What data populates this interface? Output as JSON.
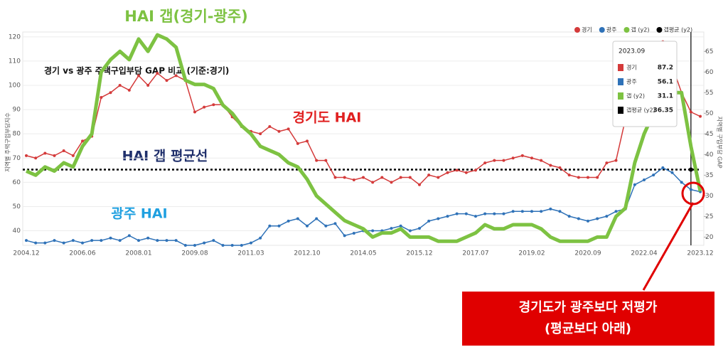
{
  "chart_data": {
    "type": "line",
    "title": "HAI 갭(경기-광주)",
    "subtitle": "경기 vs 광주  주택구입부담 GAP 비교 (기준:경기)",
    "y_label": "지역별 주택구입부담지수",
    "y2_label": "지역별 구입부담 GAP",
    "categories": [
      "2004.12",
      null,
      null,
      null,
      null,
      null,
      "2006.06",
      null,
      null,
      null,
      null,
      null,
      "2008.01",
      null,
      null,
      null,
      null,
      null,
      "2009.08",
      null,
      null,
      null,
      null,
      null,
      "2011.03",
      null,
      null,
      null,
      null,
      null,
      "2012.10",
      null,
      null,
      null,
      null,
      null,
      "2014.05",
      null,
      null,
      null,
      null,
      null,
      "2015.12",
      null,
      null,
      null,
      null,
      null,
      "2017.07",
      null,
      null,
      null,
      null,
      null,
      "2019.02",
      null,
      null,
      null,
      null,
      null,
      "2020.09",
      null,
      null,
      null,
      null,
      null,
      "2022.04",
      null,
      null,
      null,
      null,
      null,
      "2023.12"
    ],
    "series": [
      {
        "name": "경기",
        "color": "#d43a3a",
        "values": [
          71,
          70,
          72,
          71,
          73,
          71,
          77,
          79,
          95,
          97,
          100,
          98,
          104,
          100,
          105,
          102,
          104,
          102,
          89,
          91,
          92,
          92,
          87,
          83,
          81,
          80,
          83,
          81,
          82,
          76,
          77,
          69,
          69,
          62,
          62,
          61,
          62,
          60,
          62,
          60,
          62,
          62,
          59,
          63,
          62,
          64,
          65,
          64,
          65,
          68,
          69,
          69,
          70,
          71,
          70,
          69,
          67,
          66,
          63,
          62,
          62,
          62,
          68,
          69,
          86,
          92,
          97,
          104,
          118,
          108,
          97,
          89,
          87.2
        ]
      },
      {
        "name": "광주",
        "color": "#2f72b8",
        "values": [
          36,
          35,
          35,
          36,
          35,
          36,
          35,
          36,
          36,
          37,
          36,
          38,
          36,
          37,
          36,
          36,
          36,
          34,
          34,
          35,
          36,
          34,
          34,
          34,
          35,
          37,
          42,
          42,
          44,
          45,
          42,
          45,
          42,
          43,
          38,
          39,
          40,
          40,
          40,
          41,
          42,
          40,
          41,
          44,
          45,
          46,
          47,
          47,
          46,
          47,
          47,
          47,
          48,
          48,
          48,
          48,
          49,
          48,
          46,
          45,
          44,
          45,
          46,
          48,
          49,
          59,
          61,
          63,
          66,
          64,
          60,
          57,
          56.1
        ]
      },
      {
        "name": "갭 (y2)",
        "color": "#7dc242",
        "axis": "y2",
        "values": [
          36,
          35,
          37,
          36,
          38,
          37,
          42,
          45,
          60,
          63,
          65,
          63,
          68,
          65,
          69,
          68,
          66,
          58,
          57,
          57,
          56,
          52,
          50,
          47,
          45,
          42,
          41,
          40,
          38,
          37,
          34,
          30,
          28,
          26,
          24,
          23,
          22,
          20,
          21,
          21,
          22,
          20,
          20,
          20,
          19,
          19,
          19,
          20,
          21,
          23,
          22,
          22,
          23,
          23,
          23,
          22,
          20,
          19,
          19,
          19,
          19,
          20,
          20,
          25,
          27,
          38,
          45,
          50,
          53,
          55,
          55,
          42,
          31.1
        ]
      }
    ],
    "reference_line": {
      "name": "갭평균 (y2)",
      "color": "#000000",
      "axis": "y2",
      "value": 36.35
    },
    "ylim": [
      34,
      122
    ],
    "yticks": [
      40,
      50,
      60,
      70,
      80,
      90,
      100,
      110,
      120
    ],
    "y2lim": [
      18,
      69.7
    ],
    "y2ticks": [
      20,
      25,
      30,
      35,
      40,
      45,
      50,
      55,
      60,
      65
    ],
    "grid": true,
    "legend": "top-right",
    "tooltip": {
      "title": "2023.09",
      "rows": [
        {
          "name": "경기",
          "value": "87.2"
        },
        {
          "name": "광주",
          "value": "56.1"
        },
        {
          "name": "갭 (y2)",
          "value": "31.1"
        },
        {
          "name": "갭평균 (y2)",
          "value": "36.35"
        }
      ]
    },
    "annotations": {
      "gyeonggi": "경기도 HAI",
      "average": "HAI 갭 평균선",
      "gwangju": "광주 HAI",
      "callout": [
        "경기도가 광주보다 저평가",
        "(평균보다 아래)"
      ]
    }
  }
}
